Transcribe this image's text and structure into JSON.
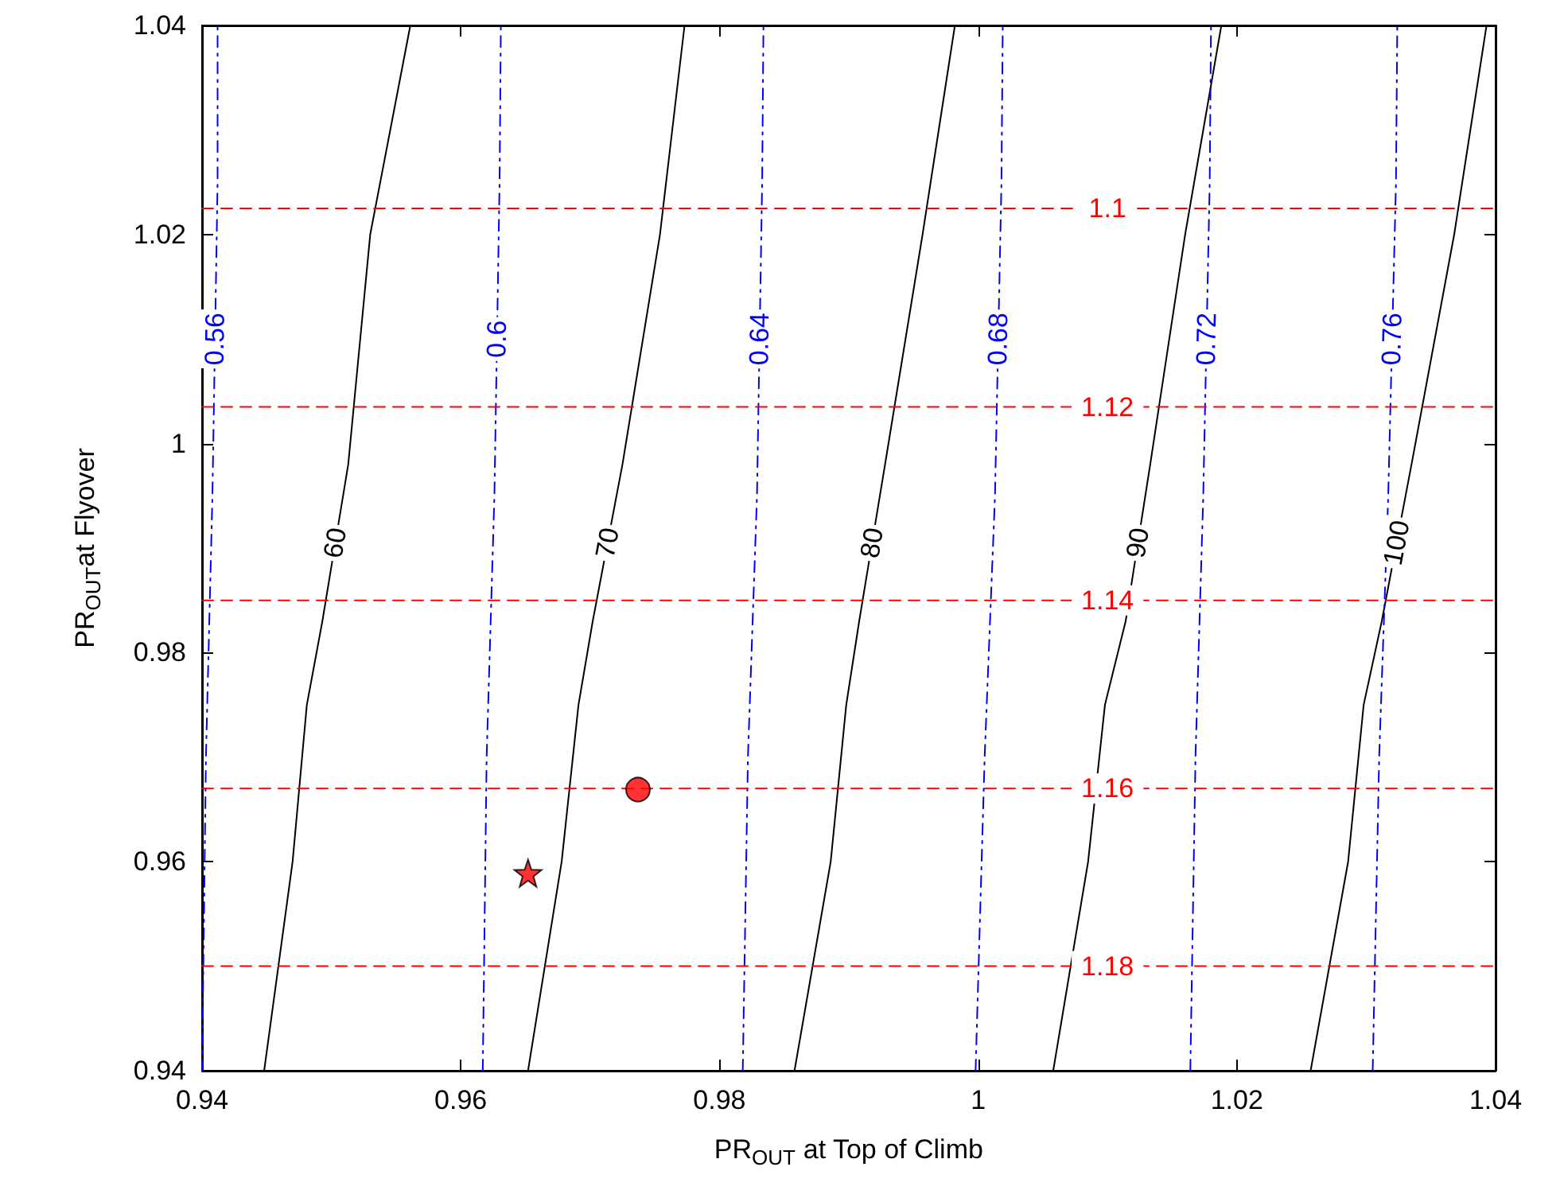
{
  "chart_data": {
    "type": "line",
    "xlabel": "PR$_{OUT}$ at Top of Climb",
    "ylabel": "PR$_{OUT}$at Flyover",
    "xlim": [
      0.94,
      1.04
    ],
    "xticks": [
      0.94,
      0.96,
      0.98,
      1,
      1.02,
      1.04
    ],
    "ylim": [
      0.94,
      1.04
    ],
    "yticks": [
      0.94,
      0.96,
      0.98,
      1,
      1.02,
      1.04
    ],
    "grid": false,
    "legend": false,
    "series": [
      {
        "name": "60",
        "color": "#000000",
        "line_style": "solid",
        "x": [
          0.9448,
          0.947,
          0.9481,
          0.9493,
          0.9513,
          0.953,
          0.9561
        ],
        "values": [
          0.94,
          0.96,
          0.975,
          0.983,
          0.998,
          1.02,
          1.04
        ]
      },
      {
        "name": "70",
        "color": "#000000",
        "line_style": "solid",
        "x": [
          0.9652,
          0.9678,
          0.9691,
          0.9702,
          0.9725,
          0.9754,
          0.9773
        ],
        "values": [
          0.94,
          0.96,
          0.975,
          0.983,
          0.998,
          1.02,
          1.04
        ]
      },
      {
        "name": "80",
        "color": "#000000",
        "line_style": "solid",
        "x": [
          0.9858,
          0.9886,
          0.9898,
          0.9908,
          0.9928,
          0.9957,
          0.9982
        ],
        "values": [
          0.94,
          0.96,
          0.975,
          0.983,
          0.998,
          1.02,
          1.04
        ]
      },
      {
        "name": "90",
        "color": "#000000",
        "line_style": "solid",
        "x": [
          1.0058,
          1.0085,
          1.0098,
          1.0114,
          1.0133,
          1.016,
          1.0188
        ],
        "values": [
          0.94,
          0.96,
          0.975,
          0.983,
          0.998,
          1.02,
          1.04
        ]
      },
      {
        "name": "100",
        "color": "#000000",
        "line_style": "solid",
        "x": [
          1.0257,
          1.0286,
          1.0298,
          1.0312,
          1.0335,
          1.0368,
          1.0393
        ],
        "values": [
          0.94,
          0.96,
          0.975,
          0.983,
          0.998,
          1.02,
          1.04
        ]
      },
      {
        "name": "0.56",
        "color": "#0000ff",
        "line_style": "dotted",
        "x": [
          0.94,
          0.9403,
          0.9408,
          0.9412,
          0.9412
        ],
        "values": [
          0.94,
          0.97,
          0.995,
          1.025,
          1.04
        ]
      },
      {
        "name": "0.6",
        "color": "#0000ff",
        "line_style": "dotted",
        "x": [
          0.9617,
          0.962,
          0.9626,
          0.963,
          0.9631
        ],
        "values": [
          0.94,
          0.97,
          0.995,
          1.025,
          1.04
        ]
      },
      {
        "name": "0.64",
        "color": "#0000ff",
        "line_style": "dotted",
        "x": [
          0.9818,
          0.9822,
          0.9829,
          0.9833,
          0.9834
        ],
        "values": [
          0.94,
          0.97,
          0.995,
          1.025,
          1.04
        ]
      },
      {
        "name": "0.68",
        "color": "#0000ff",
        "line_style": "dotted",
        "x": [
          0.9998,
          1.0005,
          1.0013,
          1.0018,
          1.0019
        ],
        "values": [
          0.94,
          0.97,
          0.995,
          1.025,
          1.04
        ]
      },
      {
        "name": "0.72",
        "color": "#0000ff",
        "line_style": "dotted",
        "x": [
          1.0164,
          1.0168,
          1.0174,
          1.0179,
          1.018
        ],
        "values": [
          0.94,
          0.97,
          0.995,
          1.025,
          1.04
        ]
      },
      {
        "name": "0.76",
        "color": "#0000ff",
        "line_style": "dotted",
        "x": [
          1.0305,
          1.031,
          1.0317,
          1.0323,
          1.0324
        ],
        "values": [
          0.94,
          0.97,
          0.995,
          1.025,
          1.04
        ]
      },
      {
        "name": "1.1",
        "color": "#ff0000",
        "line_style": "dashed",
        "x": [
          0.94,
          0.98,
          1.04
        ],
        "values": [
          1.0225,
          1.0225,
          1.0225
        ]
      },
      {
        "name": "1.12",
        "color": "#ff0000",
        "line_style": "dashed",
        "x": [
          0.94,
          0.98,
          1.04
        ],
        "values": [
          1.0035,
          1.0035,
          1.0035
        ]
      },
      {
        "name": "1.14",
        "color": "#ff0000",
        "line_style": "dashed",
        "x": [
          0.94,
          0.98,
          1.04
        ],
        "values": [
          0.985,
          0.985,
          0.985
        ]
      },
      {
        "name": "1.16",
        "color": "#ff0000",
        "line_style": "dashed",
        "x": [
          0.94,
          0.98,
          1.04
        ],
        "values": [
          0.967,
          0.967,
          0.967
        ]
      },
      {
        "name": "1.18",
        "color": "#ff0000",
        "line_style": "dashed",
        "x": [
          0.94,
          0.98,
          1.04
        ],
        "values": [
          0.95,
          0.95,
          0.95
        ]
      },
      {
        "type": "scatter",
        "marker": "circle",
        "color": "#ff0000",
        "x": [
          0.9737
        ],
        "values": [
          0.9669
        ]
      },
      {
        "type": "scatter",
        "marker": "star",
        "color": "#ff0000",
        "x": [
          0.9652
        ],
        "values": [
          0.9589
        ]
      }
    ]
  }
}
